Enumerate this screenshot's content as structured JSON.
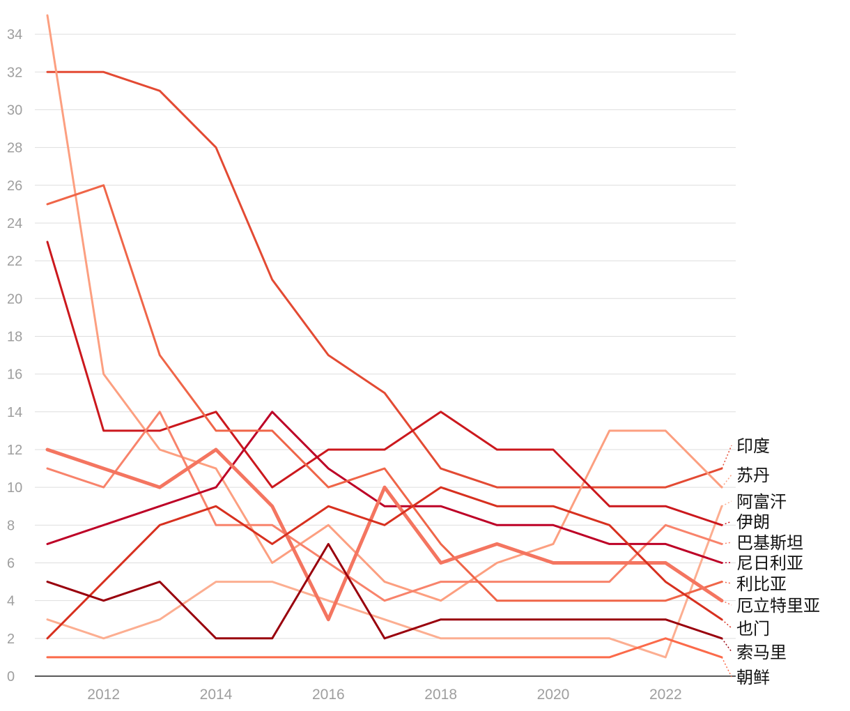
{
  "chart_data": {
    "type": "line",
    "title": "",
    "xlabel": "",
    "ylabel": "",
    "x": [
      2011,
      2012,
      2013,
      2014,
      2015,
      2016,
      2017,
      2018,
      2019,
      2020,
      2021,
      2022,
      2023
    ],
    "x_ticks": [
      2012,
      2014,
      2016,
      2018,
      2020,
      2022
    ],
    "y_ticks": [
      0,
      2,
      4,
      6,
      8,
      10,
      12,
      14,
      16,
      18,
      20,
      22,
      24,
      26,
      28,
      30,
      32,
      34
    ],
    "xlim": [
      2011,
      2023
    ],
    "ylim": [
      0,
      35
    ],
    "grid": true,
    "series": [
      {
        "name": "印度",
        "color": "#e34a33",
        "values": [
          32,
          32,
          31,
          28,
          21,
          17,
          15,
          11,
          10,
          10,
          10,
          10,
          11
        ]
      },
      {
        "name": "苏丹",
        "color": "#fc9f80",
        "values": [
          35,
          16,
          12,
          11,
          6,
          8,
          5,
          4,
          6,
          7,
          13,
          13,
          10
        ]
      },
      {
        "name": "阿富汗",
        "color": "#fcae91",
        "values": [
          3,
          2,
          3,
          5,
          5,
          4,
          3,
          2,
          2,
          2,
          2,
          1,
          9
        ]
      },
      {
        "name": "伊朗",
        "color": "#cb181d",
        "values": [
          23,
          13,
          13,
          14,
          10,
          12,
          12,
          14,
          12,
          12,
          9,
          9,
          8
        ]
      },
      {
        "name": "巴基斯坦",
        "color": "#f8836b",
        "values": [
          11,
          10,
          14,
          8,
          8,
          6,
          4,
          5,
          5,
          5,
          5,
          8,
          7
        ]
      },
      {
        "name": "尼日利亚",
        "color": "#bd0026",
        "values": [
          7,
          8,
          9,
          10,
          14,
          11,
          9,
          9,
          8,
          8,
          7,
          7,
          6
        ]
      },
      {
        "name": "利比亚",
        "color": "#ef6548",
        "values": [
          25,
          26,
          17,
          13,
          13,
          10,
          11,
          7,
          4,
          4,
          4,
          4,
          5
        ]
      },
      {
        "name": "厄立特里亚",
        "color": "#f47560",
        "values": [
          12,
          11,
          10,
          12,
          9,
          3,
          10,
          6,
          7,
          6,
          6,
          6,
          4
        ]
      },
      {
        "name": "也门",
        "color": "#d7301f",
        "values": [
          2,
          5,
          8,
          9,
          7,
          9,
          8,
          10,
          9,
          9,
          8,
          5,
          3
        ]
      },
      {
        "name": "索马里",
        "color": "#99000d",
        "values": [
          5,
          4,
          5,
          2,
          2,
          7,
          2,
          3,
          3,
          3,
          3,
          3,
          2
        ]
      },
      {
        "name": "朝鲜",
        "color": "#fb6a4a",
        "values": [
          1,
          1,
          1,
          1,
          1,
          1,
          1,
          1,
          1,
          1,
          1,
          2,
          1
        ]
      }
    ]
  }
}
